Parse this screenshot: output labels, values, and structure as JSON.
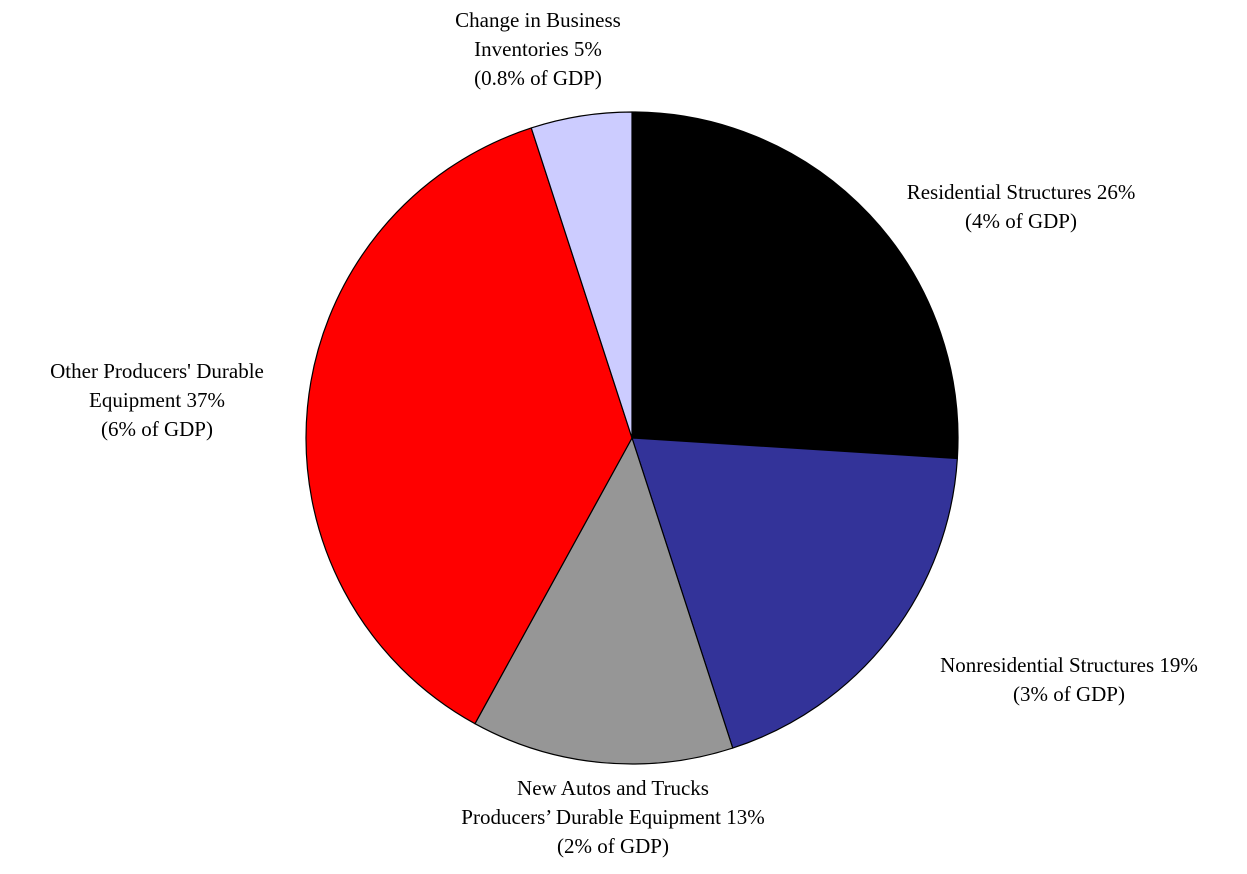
{
  "chart_data": {
    "type": "pie",
    "title": "",
    "slices": [
      {
        "name": "Residential Structures",
        "value": 26,
        "label_lines": [
          "Residential Structures 26%",
          "(4% of GDP)"
        ],
        "color": "#000000"
      },
      {
        "name": "Nonresidential Structures",
        "value": 19,
        "label_lines": [
          "Nonresidential Structures 19%",
          "(3% of GDP)"
        ],
        "color": "#333399"
      },
      {
        "name": "New Autos and Trucks Producers’ Durable Equipment",
        "value": 13,
        "label_lines": [
          "New Autos and Trucks",
          "Producers’ Durable Equipment 13%",
          "(2% of GDP)"
        ],
        "color": "#969696"
      },
      {
        "name": "Other Producers' Durable Equipment",
        "value": 37,
        "label_lines": [
          "Other Producers' Durable",
          "Equipment 37%",
          "(6% of GDP)"
        ],
        "color": "#ff0000"
      },
      {
        "name": "Change in Business Inventories",
        "value": 5,
        "label_lines": [
          "Change in Business",
          "Inventories 5%",
          "(0.8% of GDP)"
        ],
        "color": "#ccccff"
      }
    ],
    "start": "12 o'clock",
    "direction": "clockwise",
    "slice_border_color": "#000000",
    "legend": "none"
  }
}
